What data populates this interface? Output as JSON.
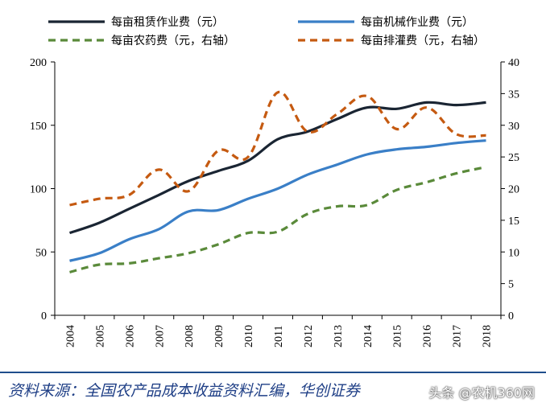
{
  "chart_data": {
    "type": "line",
    "title": "",
    "xlabel": "",
    "ylabel": "",
    "categories": [
      "2004",
      "2005",
      "2006",
      "2007",
      "2008",
      "2009",
      "2010",
      "2011",
      "2012",
      "2013",
      "2014",
      "2015",
      "2016",
      "2017",
      "2018"
    ],
    "left_axis": {
      "ylim": [
        0,
        200
      ],
      "ticks": [
        "0",
        "50",
        "100",
        "150",
        "200"
      ]
    },
    "right_axis": {
      "ylim": [
        0,
        40
      ],
      "ticks": [
        "0",
        "5",
        "10",
        "15",
        "20",
        "25",
        "30",
        "35",
        "40"
      ]
    },
    "grid": false,
    "legend_position": "top",
    "series": [
      {
        "name": "每亩租赁作业费（元）",
        "axis": "left",
        "color": "#1a2533",
        "style": "solid",
        "values": [
          65,
          73,
          84,
          95,
          106,
          114,
          122,
          139,
          145,
          155,
          164,
          163,
          168,
          166,
          168
        ]
      },
      {
        "name": "每亩机械作业费（元）",
        "axis": "left",
        "color": "#3a7fc7",
        "style": "solid",
        "values": [
          43,
          49,
          60,
          68,
          82,
          83,
          92,
          100,
          111,
          119,
          127,
          131,
          133,
          136,
          138
        ]
      },
      {
        "name": "每亩农药费（元，右轴）",
        "axis": "right",
        "color": "#5a8a3a",
        "style": "dashed",
        "values": [
          6.8,
          8.0,
          8.2,
          9.0,
          9.8,
          11.2,
          13.0,
          13.2,
          16.0,
          17.2,
          17.4,
          19.8,
          21.0,
          22.4,
          23.4
        ]
      },
      {
        "name": "每亩排灌费（元，右轴）",
        "axis": "right",
        "color": "#c55a11",
        "style": "dashed",
        "values": [
          17.4,
          18.4,
          19.0,
          23.0,
          19.6,
          26.0,
          25.0,
          35.2,
          29.0,
          31.8,
          34.6,
          29.4,
          32.8,
          28.6,
          28.4
        ]
      }
    ]
  },
  "footer": {
    "source": "资料来源：全国农产品成本收益资料汇编，华创证券",
    "watermark": "头条 @农机360网"
  }
}
